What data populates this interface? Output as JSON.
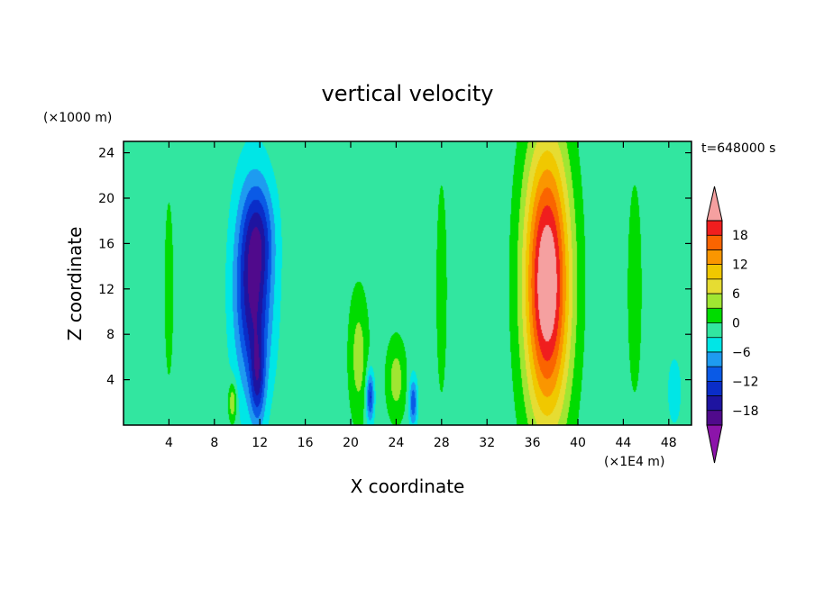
{
  "chart_data": {
    "type": "heatmap",
    "title": "vertical velocity",
    "xlabel": "X coordinate",
    "ylabel": "Z coordinate",
    "x_unit": "(×1E4 m)",
    "y_unit": "(×1000 m)",
    "time_label": "t=648000 s",
    "xlim": [
      0,
      50
    ],
    "ylim": [
      0,
      25
    ],
    "x_ticks": [
      4,
      8,
      12,
      16,
      20,
      24,
      28,
      32,
      36,
      40,
      44,
      48
    ],
    "y_ticks": [
      4,
      8,
      12,
      16,
      20,
      24
    ],
    "x_tick_labels": [
      "4",
      "8",
      "12",
      "16",
      "20",
      "24",
      "28",
      "32",
      "36",
      "40",
      "44",
      "48"
    ],
    "y_tick_labels": [
      "4",
      "8",
      "12",
      "16",
      "20",
      "24"
    ],
    "colorbar": {
      "levels": [
        -21,
        -18,
        -15,
        -12,
        -9,
        -6,
        -3,
        0,
        3,
        6,
        9,
        12,
        15,
        18,
        21
      ],
      "tick_values": [
        -18,
        -12,
        -6,
        0,
        6,
        12,
        18
      ],
      "tick_labels": [
        "−18",
        "−12",
        "−6",
        "0",
        "6",
        "12",
        "18"
      ],
      "colors": [
        "#500a8c",
        "#1e14a0",
        "#0a2dc8",
        "#0a5ae6",
        "#1e9bf0",
        "#00e6e6",
        "#32e6a0",
        "#00dc00",
        "#a0e632",
        "#e6dc32",
        "#f0c800",
        "#fa9600",
        "#fa6400",
        "#f01e1e"
      ],
      "under_color": "#8c14aa",
      "over_color": "#f5a0a0"
    },
    "background_value": -1.5,
    "features": [
      {
        "x": 37.3,
        "z": 12.5,
        "sx": 1.4,
        "sz": 8.5,
        "amp": 27,
        "note": "updraft"
      },
      {
        "x": 11.4,
        "z": 12.0,
        "sx": 1.1,
        "sz": 6.0,
        "amp": -17,
        "note": "downdraft"
      },
      {
        "x": 11.8,
        "z": 4.0,
        "sx": 0.45,
        "sz": 2.8,
        "amp": -10,
        "note": "downdraft base"
      },
      {
        "x": 12.0,
        "z": 17.0,
        "sx": 0.9,
        "sz": 3.0,
        "amp": -6,
        "note": "downdraft top"
      },
      {
        "x": 20.7,
        "z": 6.0,
        "sx": 0.6,
        "sz": 4.0,
        "amp": 6,
        "note": "weak updraft"
      },
      {
        "x": 24.0,
        "z": 4.0,
        "sx": 0.6,
        "sz": 2.5,
        "amp": 6,
        "note": "weak updraft"
      },
      {
        "x": 21.7,
        "z": 2.5,
        "sx": 0.25,
        "sz": 1.6,
        "amp": -12,
        "note": "small downdraft"
      },
      {
        "x": 25.5,
        "z": 2.0,
        "sx": 0.25,
        "sz": 1.5,
        "amp": -10,
        "note": "small downdraft"
      },
      {
        "x": 9.6,
        "z": 2.0,
        "sx": 0.25,
        "sz": 1.2,
        "amp": 8,
        "note": "small updraft"
      },
      {
        "x": 4.0,
        "z": 12.0,
        "sx": 0.5,
        "sz": 10.0,
        "amp": 2,
        "note": "weak updraft band"
      },
      {
        "x": 28.0,
        "z": 12.0,
        "sx": 0.6,
        "sz": 12.0,
        "amp": 2,
        "note": "weak updraft band"
      },
      {
        "x": 45.0,
        "z": 12.0,
        "sx": 0.8,
        "sz": 12.0,
        "amp": 2,
        "note": "weak updraft band"
      },
      {
        "x": 48.5,
        "z": 3.0,
        "sx": 0.4,
        "sz": 2.0,
        "amp": -4,
        "note": "weak downdraft"
      }
    ]
  }
}
